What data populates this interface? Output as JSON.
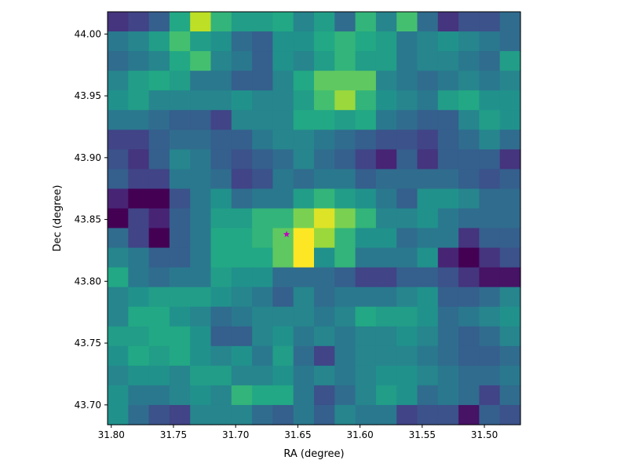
{
  "chart_data": {
    "type": "heatmap",
    "title": "",
    "xlabel": "RA (degree)",
    "ylabel": "Dec (degree)",
    "xlim": [
      31.803,
      31.471
    ],
    "ylim": [
      43.684,
      44.018
    ],
    "x_ticks": [
      31.8,
      31.75,
      31.7,
      31.65,
      31.6,
      31.55,
      31.5
    ],
    "x_tick_labels": [
      "31.80",
      "31.75",
      "31.70",
      "31.65",
      "31.60",
      "31.55",
      "31.50"
    ],
    "y_ticks": [
      43.7,
      43.75,
      43.8,
      43.85,
      43.9,
      43.95,
      44.0
    ],
    "y_tick_labels": [
      "43.70",
      "43.75",
      "43.80",
      "43.85",
      "43.90",
      "43.95",
      "44.00"
    ],
    "colormap": "viridis",
    "grid": false,
    "rows_top_to_bottom": [
      [
        0.15,
        0.2,
        0.3,
        0.6,
        0.9,
        0.65,
        0.55,
        0.55,
        0.6,
        0.45,
        0.55,
        0.35,
        0.65,
        0.45,
        0.7,
        0.35,
        0.15,
        0.25,
        0.25,
        0.35
      ],
      [
        0.4,
        0.45,
        0.55,
        0.7,
        0.55,
        0.5,
        0.35,
        0.3,
        0.5,
        0.5,
        0.6,
        0.65,
        0.6,
        0.55,
        0.4,
        0.45,
        0.5,
        0.45,
        0.4,
        0.35
      ],
      [
        0.35,
        0.4,
        0.45,
        0.6,
        0.7,
        0.45,
        0.4,
        0.3,
        0.5,
        0.45,
        0.55,
        0.65,
        0.55,
        0.55,
        0.4,
        0.45,
        0.45,
        0.4,
        0.35,
        0.55
      ],
      [
        0.45,
        0.55,
        0.6,
        0.55,
        0.4,
        0.4,
        0.3,
        0.3,
        0.45,
        0.6,
        0.75,
        0.75,
        0.75,
        0.45,
        0.4,
        0.35,
        0.4,
        0.45,
        0.4,
        0.45
      ],
      [
        0.5,
        0.55,
        0.45,
        0.45,
        0.45,
        0.45,
        0.5,
        0.45,
        0.45,
        0.55,
        0.7,
        0.85,
        0.65,
        0.5,
        0.45,
        0.4,
        0.55,
        0.6,
        0.5,
        0.5
      ],
      [
        0.4,
        0.4,
        0.35,
        0.3,
        0.3,
        0.2,
        0.45,
        0.45,
        0.45,
        0.6,
        0.6,
        0.55,
        0.6,
        0.4,
        0.35,
        0.3,
        0.3,
        0.45,
        0.55,
        0.5
      ],
      [
        0.2,
        0.2,
        0.3,
        0.35,
        0.35,
        0.3,
        0.3,
        0.4,
        0.45,
        0.45,
        0.4,
        0.35,
        0.3,
        0.25,
        0.25,
        0.2,
        0.3,
        0.35,
        0.45,
        0.35
      ],
      [
        0.25,
        0.15,
        0.3,
        0.45,
        0.4,
        0.3,
        0.25,
        0.3,
        0.35,
        0.45,
        0.35,
        0.3,
        0.2,
        0.1,
        0.3,
        0.15,
        0.3,
        0.3,
        0.3,
        0.15
      ],
      [
        0.3,
        0.2,
        0.2,
        0.4,
        0.4,
        0.35,
        0.2,
        0.25,
        0.4,
        0.35,
        0.4,
        0.4,
        0.3,
        0.35,
        0.35,
        0.35,
        0.35,
        0.3,
        0.25,
        0.3
      ],
      [
        0.1,
        0.0,
        0.0,
        0.25,
        0.4,
        0.5,
        0.35,
        0.4,
        0.4,
        0.55,
        0.65,
        0.55,
        0.5,
        0.4,
        0.3,
        0.5,
        0.5,
        0.45,
        0.35,
        0.35
      ],
      [
        0.0,
        0.2,
        0.1,
        0.3,
        0.4,
        0.55,
        0.55,
        0.65,
        0.65,
        0.8,
        0.95,
        0.8,
        0.65,
        0.45,
        0.45,
        0.5,
        0.4,
        0.35,
        0.35,
        0.35
      ],
      [
        0.35,
        0.2,
        0.0,
        0.3,
        0.4,
        0.6,
        0.6,
        0.65,
        0.75,
        1.0,
        0.85,
        0.65,
        0.5,
        0.5,
        0.35,
        0.4,
        0.4,
        0.15,
        0.3,
        0.3
      ],
      [
        0.45,
        0.4,
        0.3,
        0.3,
        0.4,
        0.6,
        0.6,
        0.6,
        0.75,
        1.0,
        0.5,
        0.65,
        0.4,
        0.4,
        0.4,
        0.5,
        0.1,
        0.0,
        0.15,
        0.25
      ],
      [
        0.6,
        0.4,
        0.35,
        0.4,
        0.4,
        0.55,
        0.5,
        0.5,
        0.35,
        0.35,
        0.35,
        0.3,
        0.2,
        0.2,
        0.3,
        0.3,
        0.25,
        0.15,
        0.05,
        0.05
      ],
      [
        0.45,
        0.5,
        0.55,
        0.55,
        0.55,
        0.5,
        0.45,
        0.4,
        0.3,
        0.45,
        0.35,
        0.4,
        0.4,
        0.4,
        0.45,
        0.5,
        0.3,
        0.3,
        0.35,
        0.45
      ],
      [
        0.45,
        0.6,
        0.6,
        0.5,
        0.45,
        0.35,
        0.4,
        0.45,
        0.45,
        0.45,
        0.4,
        0.45,
        0.6,
        0.55,
        0.55,
        0.5,
        0.35,
        0.4,
        0.45,
        0.5
      ],
      [
        0.55,
        0.55,
        0.6,
        0.6,
        0.5,
        0.3,
        0.3,
        0.45,
        0.5,
        0.4,
        0.45,
        0.4,
        0.45,
        0.45,
        0.5,
        0.45,
        0.35,
        0.3,
        0.35,
        0.45
      ],
      [
        0.5,
        0.6,
        0.55,
        0.6,
        0.5,
        0.45,
        0.5,
        0.4,
        0.55,
        0.35,
        0.2,
        0.4,
        0.45,
        0.45,
        0.45,
        0.4,
        0.35,
        0.3,
        0.3,
        0.35
      ],
      [
        0.45,
        0.5,
        0.5,
        0.45,
        0.55,
        0.55,
        0.45,
        0.45,
        0.5,
        0.4,
        0.45,
        0.4,
        0.45,
        0.5,
        0.5,
        0.45,
        0.4,
        0.35,
        0.35,
        0.4
      ],
      [
        0.5,
        0.4,
        0.4,
        0.45,
        0.5,
        0.45,
        0.65,
        0.6,
        0.6,
        0.4,
        0.25,
        0.35,
        0.45,
        0.55,
        0.5,
        0.35,
        0.4,
        0.35,
        0.2,
        0.35
      ],
      [
        0.5,
        0.35,
        0.25,
        0.2,
        0.45,
        0.45,
        0.45,
        0.35,
        0.3,
        0.4,
        0.3,
        0.45,
        0.4,
        0.4,
        0.2,
        0.25,
        0.25,
        0.05,
        0.3,
        0.25
      ]
    ],
    "marker": {
      "symbol": "star",
      "ra": 31.659,
      "dec": 43.838,
      "color": "#c100c1"
    }
  }
}
